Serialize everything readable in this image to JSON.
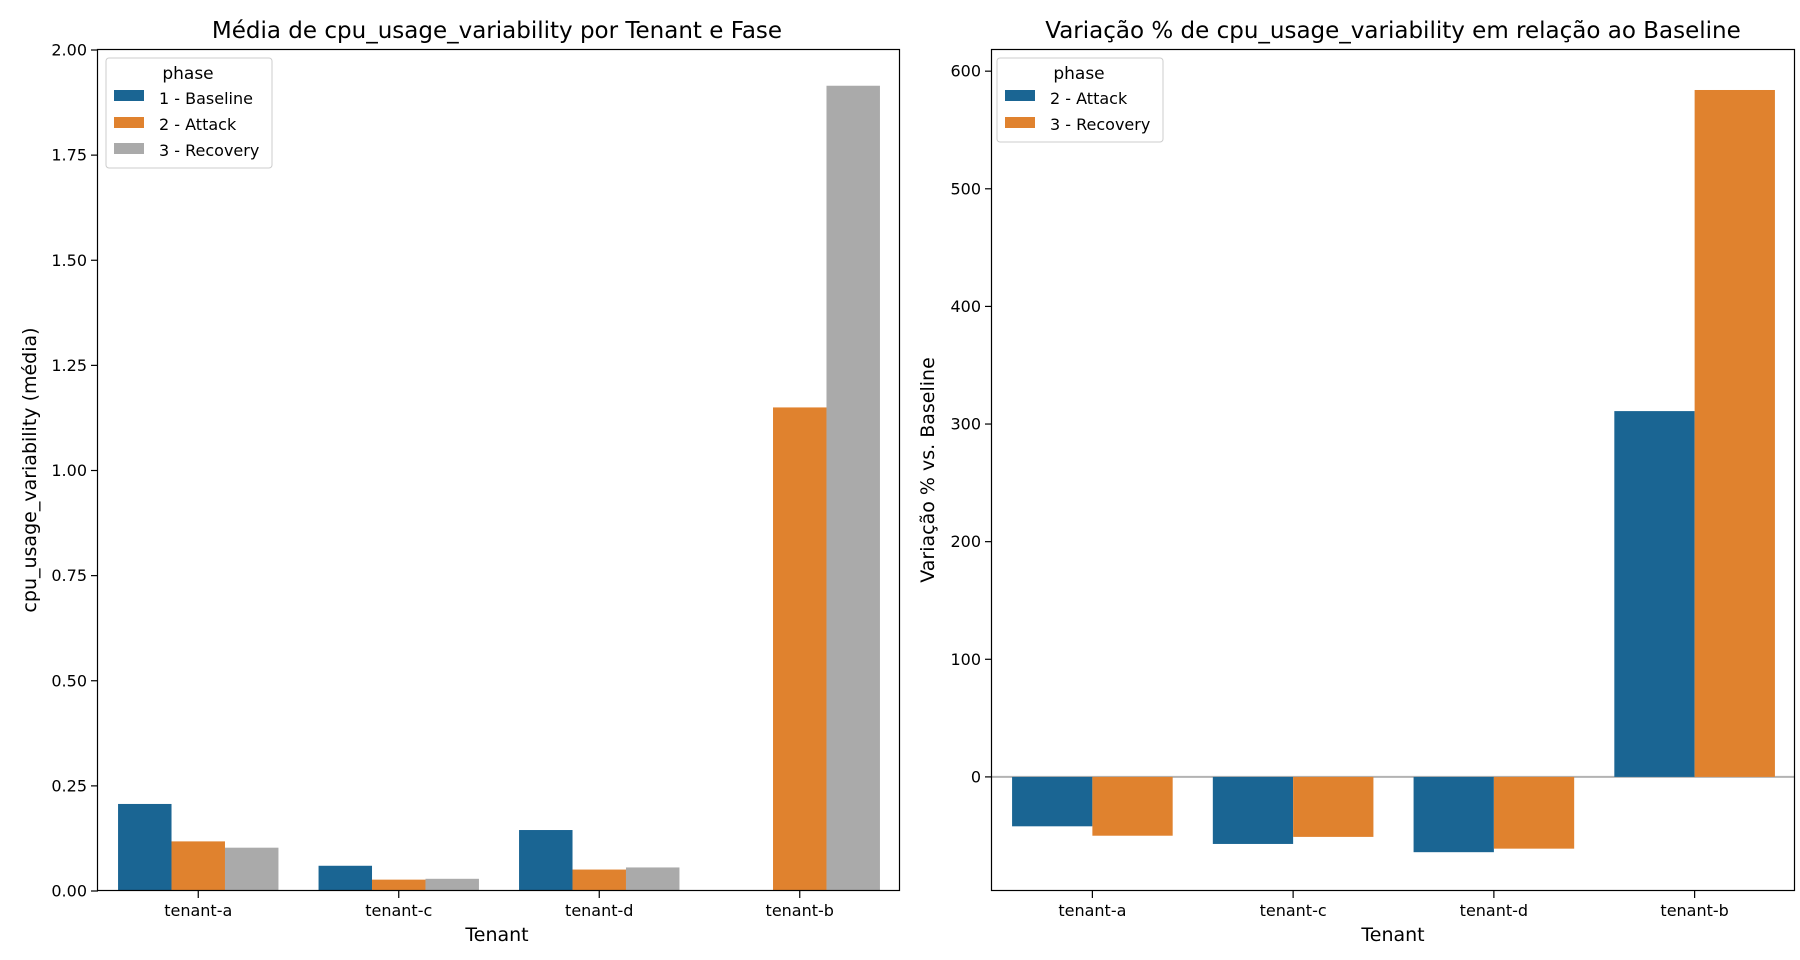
{
  "colors": {
    "blue": "#1a6593",
    "orange": "#e0822e",
    "gray": "#aaaaaa",
    "axis": "#000000",
    "zero_line": "#b3b3b3",
    "legend_border": "#cccccc"
  },
  "chart_data": [
    {
      "type": "bar",
      "title": "Média de cpu_usage_variability por Tenant e Fase",
      "xlabel": "Tenant",
      "ylabel": "cpu_usage_variability (média)",
      "categories": [
        "tenant-a",
        "tenant-c",
        "tenant-d",
        "tenant-b"
      ],
      "ylim": [
        0,
        2.0
      ],
      "yticks": [
        0.0,
        0.25,
        0.5,
        0.75,
        1.0,
        1.25,
        1.5,
        1.75,
        2.0
      ],
      "ytick_labels": [
        "0.00",
        "0.25",
        "0.50",
        "0.75",
        "1.00",
        "1.25",
        "1.50",
        "1.75",
        "2.00"
      ],
      "grid": false,
      "legend": {
        "title": "phase",
        "position": "top-left",
        "entries": [
          "1 - Baseline",
          "2 - Attack",
          "3 - Recovery"
        ]
      },
      "series": [
        {
          "name": "1 - Baseline",
          "color": "#1a6593",
          "values": [
            0.207,
            0.06,
            0.145,
            null
          ]
        },
        {
          "name": "2 - Attack",
          "color": "#e0822e",
          "values": [
            0.118,
            0.027,
            0.051,
            1.15
          ]
        },
        {
          "name": "3 - Recovery",
          "color": "#aaaaaa",
          "values": [
            0.103,
            0.029,
            0.056,
            1.915
          ]
        }
      ]
    },
    {
      "type": "bar",
      "title": "Variação % de cpu_usage_variability em relação ao Baseline",
      "xlabel": "Tenant",
      "ylabel": "Variação % vs. Baseline",
      "categories": [
        "tenant-a",
        "tenant-c",
        "tenant-d",
        "tenant-b"
      ],
      "ylim": [
        -97,
        618
      ],
      "yticks": [
        0,
        100,
        200,
        300,
        400,
        500,
        600
      ],
      "ytick_labels": [
        "0",
        "100",
        "200",
        "300",
        "400",
        "500",
        "600"
      ],
      "zero_line": true,
      "grid": false,
      "legend": {
        "title": "phase",
        "position": "top-left",
        "entries": [
          "2 - Attack",
          "3 - Recovery"
        ]
      },
      "series": [
        {
          "name": "2 - Attack",
          "color": "#1a6593",
          "values": [
            -42,
            -57,
            -64,
            311
          ]
        },
        {
          "name": "3 - Recovery",
          "color": "#e0822e",
          "values": [
            -50,
            -51,
            -61,
            584
          ]
        }
      ]
    }
  ]
}
